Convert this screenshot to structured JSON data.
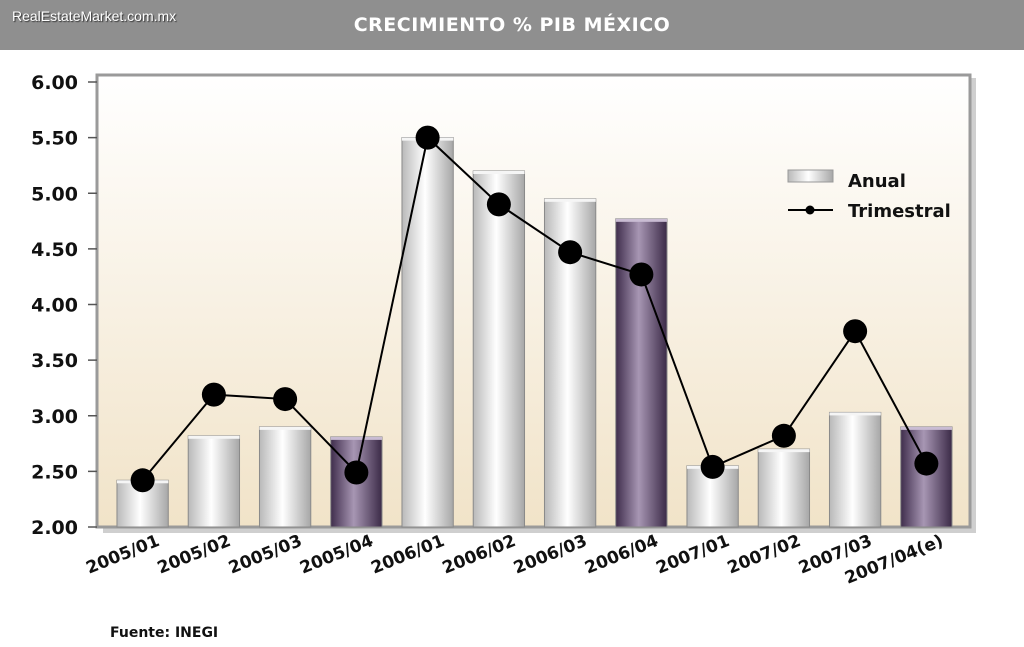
{
  "header": {
    "site": "RealEstateMarket.com.mx",
    "title": "CRECIMIENTO % PIB MÉXICO"
  },
  "source": "Fuente: INEGI",
  "chart_data": {
    "type": "bar",
    "categories": [
      "2005/01",
      "2005/02",
      "2005/03",
      "2005/04",
      "2006/01",
      "2006/02",
      "2006/03",
      "2006/04",
      "2007/01",
      "2007/02",
      "2007/03",
      "2007/04(e)"
    ],
    "series": [
      {
        "name": "Anual",
        "type": "bar",
        "values": [
          2.42,
          2.82,
          2.9,
          2.81,
          5.5,
          5.2,
          4.95,
          4.77,
          2.55,
          2.7,
          3.03,
          2.9
        ]
      },
      {
        "name": "Trimestral",
        "type": "line",
        "values": [
          2.42,
          3.19,
          3.15,
          2.49,
          5.5,
          4.9,
          4.47,
          4.27,
          2.54,
          2.82,
          3.76,
          2.57
        ]
      }
    ],
    "highlighted_bars": [
      3,
      7,
      11
    ],
    "yticks": [
      "2.00",
      "2.50",
      "3.00",
      "3.50",
      "4.00",
      "4.50",
      "5.00",
      "5.50",
      "6.00"
    ],
    "ylim": [
      2.0,
      6.0
    ],
    "legend": {
      "placement": "top-right",
      "items": [
        "Anual",
        "Trimestral"
      ]
    },
    "colors": {
      "bar": "#e2e2e2",
      "bar_highlight": "#6b5478",
      "line": "#000000"
    }
  }
}
